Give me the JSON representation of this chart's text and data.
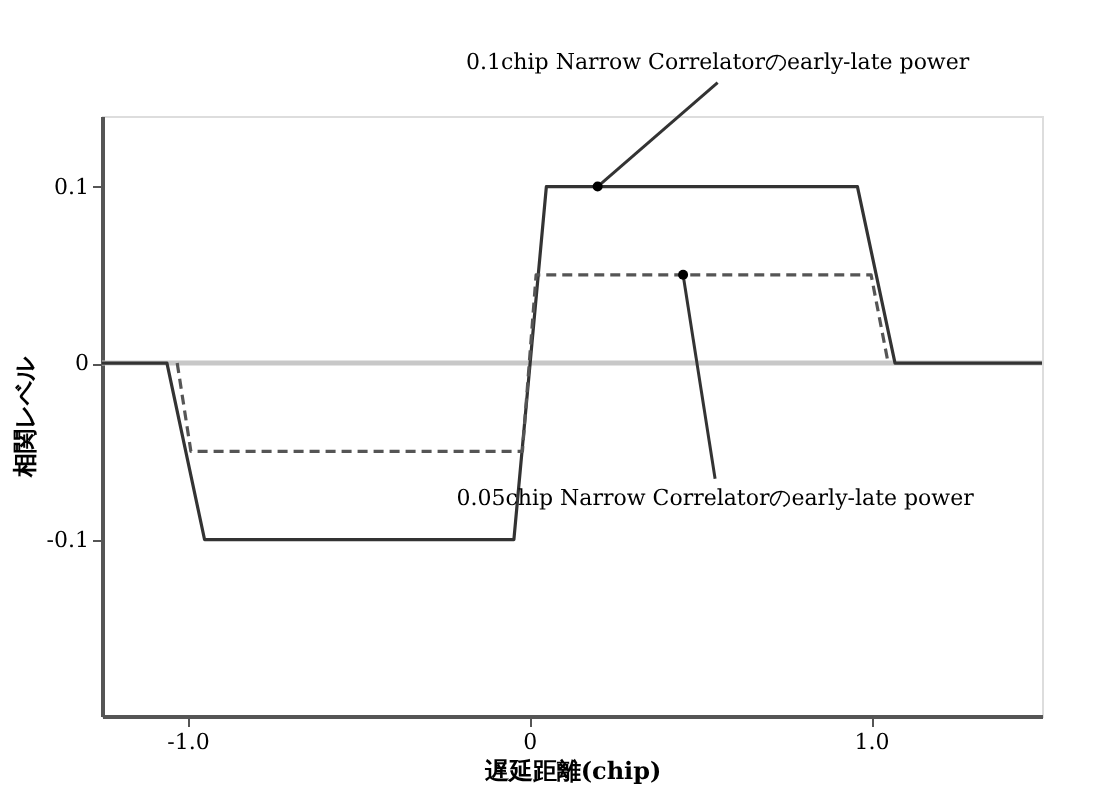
{
  "chart_data": {
    "type": "line",
    "xlabel": "遅延距離(chip)",
    "ylabel": "相関レベル",
    "xlim": [
      -1.25,
      1.5
    ],
    "ylim": [
      -0.2,
      0.14
    ],
    "xticks": [
      {
        "value": -1,
        "label": "-1.0"
      },
      0,
      {
        "value": 1,
        "label": "1.0"
      }
    ],
    "yticks": [
      -0.1,
      0,
      0.1
    ],
    "marker": "none",
    "series": [
      {
        "color": "#333333",
        "line_style": "solid",
        "x": [
          -1.25,
          -1.06,
          -0.95,
          -0.045,
          0.05,
          0.96,
          1.07,
          1.5
        ],
        "values": [
          0,
          0,
          -0.1,
          -0.1,
          0.1,
          0.1,
          0,
          0
        ]
      },
      {
        "color": "#555555",
        "line_style": "dashed",
        "x": [
          -1.03,
          -0.99,
          -0.02,
          0.02,
          1.0,
          1.05
        ],
        "values": [
          0,
          -0.05,
          -0.05,
          0.05,
          0.05,
          0
        ]
      }
    ],
    "ref_lines": [
      {
        "axis": "y",
        "value": 0,
        "color": "#c8c8c8",
        "line_style": "solid"
      }
    ],
    "annotations": [
      {
        "text": "0.1chip Narrow Correlatorのearly-late power",
        "x": 0.2,
        "y": 0.1
      },
      {
        "text": "0.05chip Narrow Correlatorのearly-late power",
        "x": 0.45,
        "y": 0.05
      }
    ]
  }
}
